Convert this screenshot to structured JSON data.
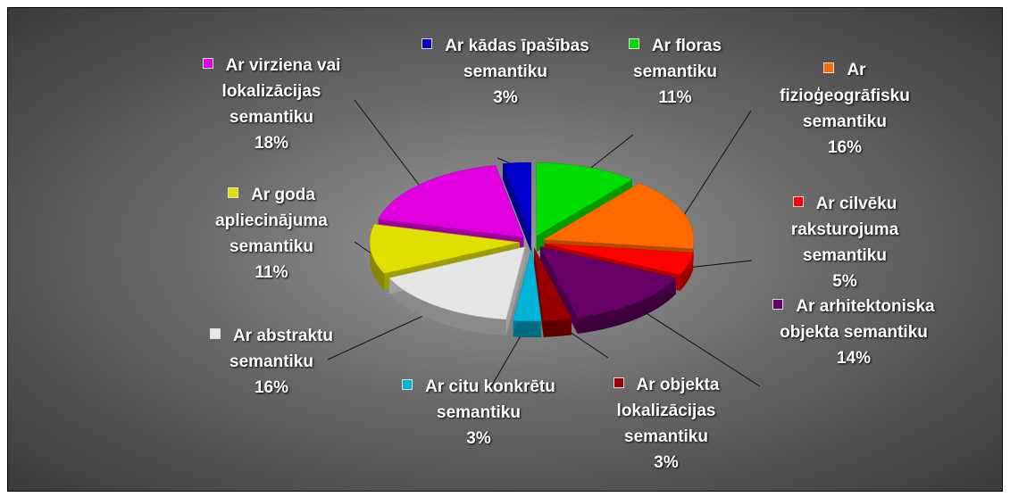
{
  "chart_data": {
    "type": "pie",
    "categories": [
      "Ar floras semantiku",
      "Ar fizioģeogrāfisku semantiku",
      "Ar cilvēku raksturojuma semantiku",
      "Ar arhitektoniska objekta semantiku",
      "Ar objekta lokalizācijas semantiku",
      "Ar citu konkrētu semantiku",
      "Ar abstraktu semantiku",
      "Ar goda apliecinājuma semantiku",
      "Ar virziena vai lokalizācijas semantiku",
      "Ar kādas īpašības semantiku"
    ],
    "values": [
      11,
      16,
      5,
      14,
      3,
      3,
      16,
      11,
      18,
      3
    ],
    "value_labels": [
      "11%",
      "16%",
      "5%",
      "14%",
      "3%",
      "3%",
      "16%",
      "11%",
      "18%",
      "3%"
    ],
    "colors": [
      "#00dd00",
      "#ff6a00",
      "#ff0000",
      "#660066",
      "#990000",
      "#00b4d8",
      "#e6e6e6",
      "#e0e000",
      "#e000e0",
      "#0000cc"
    ]
  }
}
